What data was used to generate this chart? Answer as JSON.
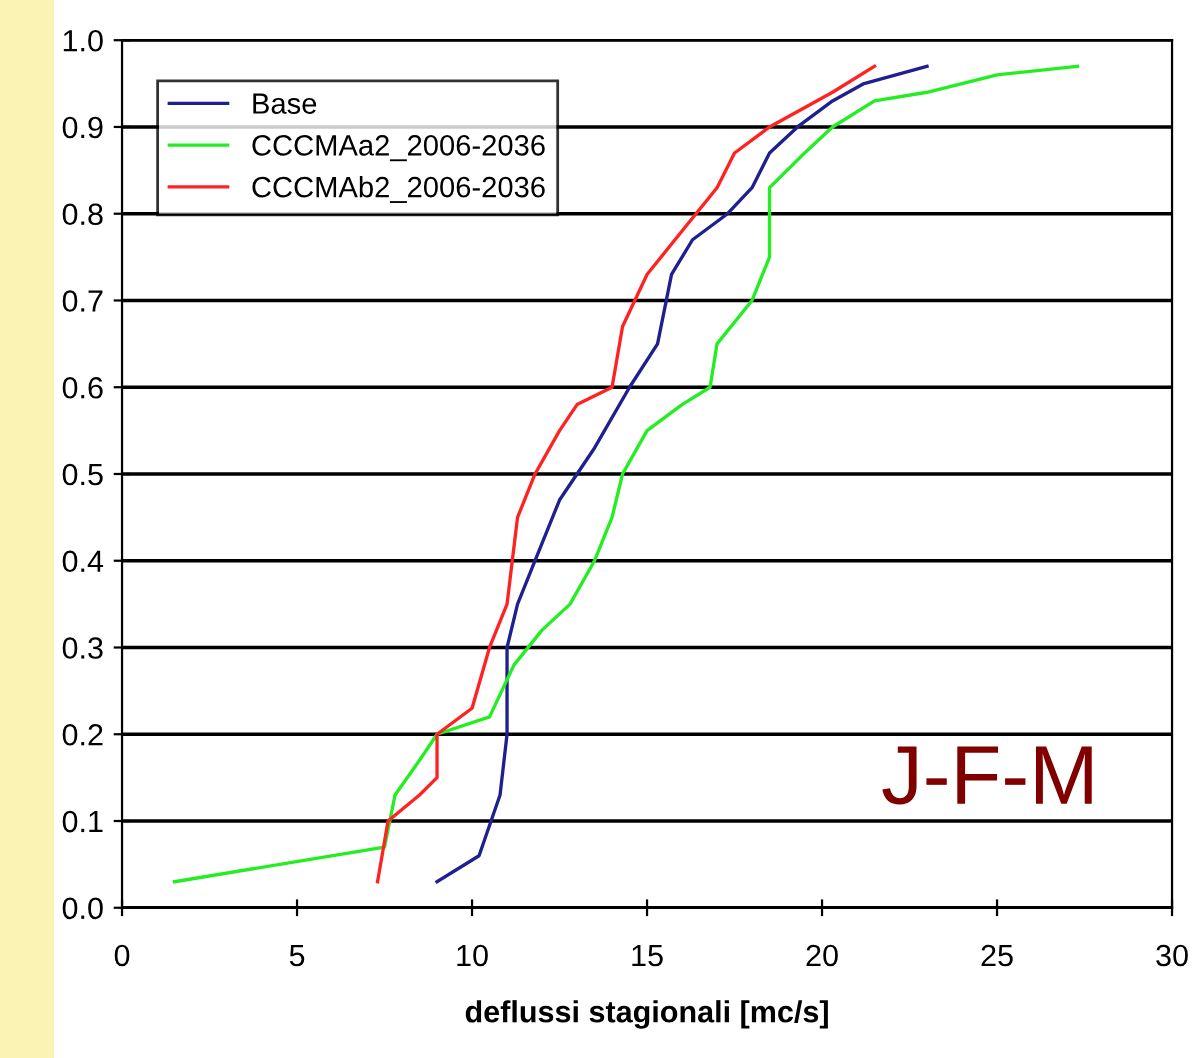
{
  "chart_data": {
    "type": "line",
    "xlabel": "deflussi stagionali [mc/s]",
    "xlim": [
      0,
      30
    ],
    "xticks": [
      0,
      5,
      10,
      15,
      20,
      25,
      30
    ],
    "ylim": [
      0,
      1
    ],
    "yticks": [
      {
        "value": 0,
        "label": "0.0"
      },
      {
        "value": 0.1,
        "label": "0.1"
      },
      {
        "value": 0.2,
        "label": "0.2"
      },
      {
        "value": 0.3,
        "label": "0.3"
      },
      {
        "value": 0.4,
        "label": "0.4"
      },
      {
        "value": 0.5,
        "label": "0.5"
      },
      {
        "value": 0.6,
        "label": "0.6"
      },
      {
        "value": 0.7,
        "label": "0.7"
      },
      {
        "value": 0.8,
        "label": "0.8"
      },
      {
        "value": 0.9,
        "label": "0.9"
      },
      {
        "value": 1,
        "label": "1.0"
      }
    ],
    "grid": "y",
    "legend": "top left",
    "marker": "none",
    "line_style": "solid",
    "annotations": [
      "J-F-M"
    ],
    "series": [
      {
        "name": "Base",
        "color": "#1f1f8f",
        "x": [
          9.0,
          10.2,
          10.8,
          11.0,
          11.0,
          11.3,
          11.8,
          12.5,
          13.5,
          14.5,
          15.3,
          15.7,
          16.3,
          17.3,
          18.0,
          18.5,
          19.3,
          20.3,
          21.2,
          23.0
        ],
        "values": [
          0.03,
          0.06,
          0.13,
          0.2,
          0.3,
          0.35,
          0.4,
          0.47,
          0.53,
          0.6,
          0.65,
          0.73,
          0.77,
          0.8,
          0.83,
          0.87,
          0.9,
          0.93,
          0.95,
          0.97
        ]
      },
      {
        "name": "CCCMAa2_2006-2036",
        "color": "#22ee22",
        "x": [
          1.5,
          7.5,
          7.8,
          8.5,
          9.0,
          10.5,
          11.2,
          12.0,
          12.8,
          13.5,
          14.0,
          14.3,
          15.0,
          16.0,
          16.8,
          17.0,
          18.0,
          18.5,
          18.5,
          19.5,
          20.3,
          21.5,
          23.0,
          25.0,
          27.3
        ],
        "values": [
          0.03,
          0.07,
          0.13,
          0.17,
          0.2,
          0.22,
          0.28,
          0.32,
          0.35,
          0.4,
          0.45,
          0.5,
          0.55,
          0.58,
          0.6,
          0.65,
          0.7,
          0.75,
          0.83,
          0.87,
          0.9,
          0.93,
          0.94,
          0.96,
          0.97
        ]
      },
      {
        "name": "CCCMAb2_2006-2036",
        "color": "#ff2222",
        "x": [
          7.3,
          7.6,
          8.5,
          9.0,
          9.0,
          10.0,
          10.5,
          11.0,
          11.3,
          11.8,
          12.5,
          13.0,
          14.0,
          14.3,
          15.0,
          16.0,
          17.0,
          17.5,
          18.5,
          20.3,
          21.5
        ],
        "values": [
          0.03,
          0.1,
          0.13,
          0.15,
          0.2,
          0.23,
          0.3,
          0.35,
          0.45,
          0.5,
          0.55,
          0.58,
          0.6,
          0.67,
          0.73,
          0.78,
          0.83,
          0.87,
          0.9,
          0.94,
          0.97
        ]
      }
    ]
  }
}
